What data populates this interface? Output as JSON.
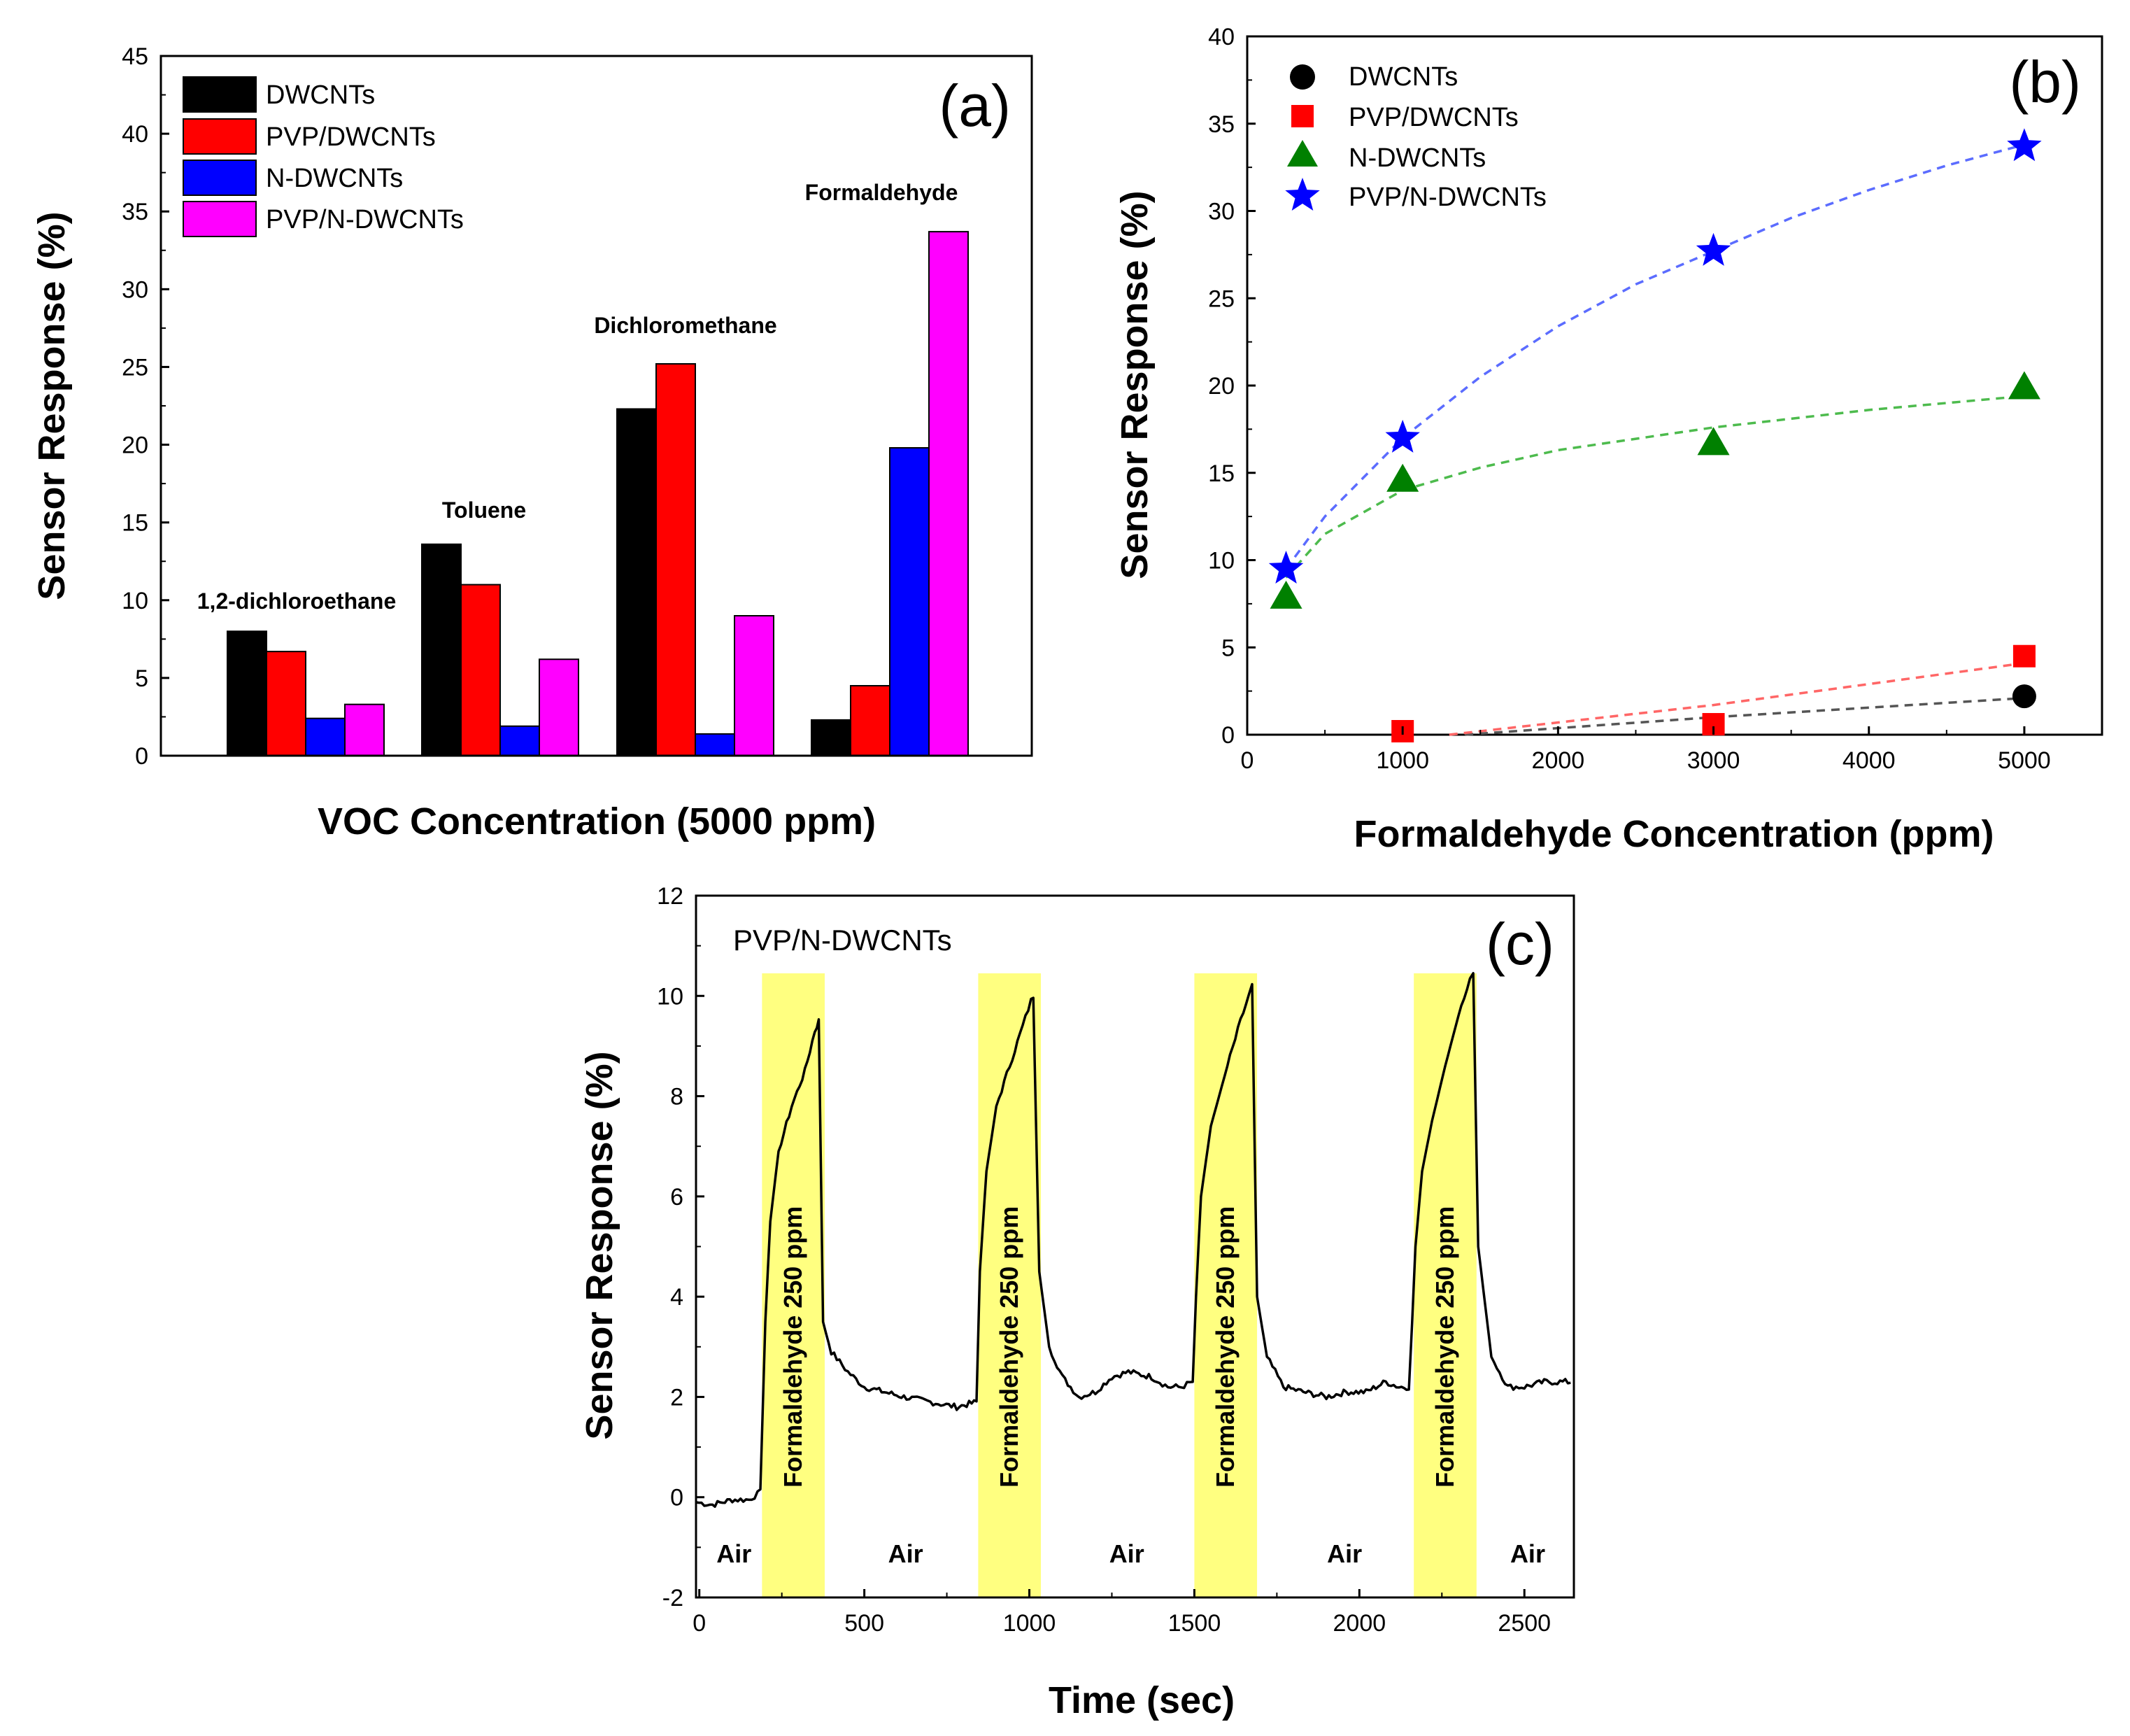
{
  "chart_data": [
    {
      "type": "bar",
      "panel": "(a)",
      "xlabel": "VOC Concentration (5000 ppm)",
      "ylabel": "Sensor Response (%)",
      "ylim": [
        0,
        45
      ],
      "yticks": [
        0,
        5,
        10,
        15,
        20,
        25,
        30,
        35,
        40,
        45
      ],
      "categories": [
        "1,2-dichloroethane",
        "Toluene",
        "Dichloromethane",
        "Formaldehyde"
      ],
      "series": [
        {
          "name": "DWCNTs",
          "color": "#000000",
          "values": [
            8.0,
            13.6,
            22.3,
            2.3
          ]
        },
        {
          "name": "PVP/DWCNTs",
          "color": "#ff0000",
          "values": [
            6.7,
            11.0,
            25.2,
            4.5
          ]
        },
        {
          "name": "N-DWCNTs",
          "color": "#0000ff",
          "values": [
            2.4,
            1.9,
            1.4,
            19.8
          ]
        },
        {
          "name": "PVP/N-DWCNTs",
          "color": "#ff00ff",
          "values": [
            3.3,
            6.2,
            9.0,
            33.7
          ]
        }
      ],
      "legend": "top-left"
    },
    {
      "type": "scatter",
      "panel": "(b)",
      "xlabel": "Formaldehyde Concentration (ppm)",
      "ylabel": "Sensor Response (%)",
      "xlim": [
        0,
        5500
      ],
      "ylim": [
        0,
        40
      ],
      "xticks": [
        0,
        1000,
        2000,
        3000,
        4000,
        5000
      ],
      "yticks": [
        0,
        5,
        10,
        15,
        20,
        25,
        30,
        35,
        40
      ],
      "series": [
        {
          "name": "DWCNTs",
          "color": "#000000",
          "marker": "circle",
          "x": [
            5000
          ],
          "y": [
            2.2
          ],
          "fit": [
            [
              1400,
              0.0
            ],
            [
              3000,
              1.0
            ],
            [
              5000,
              2.1
            ]
          ]
        },
        {
          "name": "PVP/DWCNTs",
          "color": "#ff0000",
          "marker": "square",
          "x": [
            1000,
            3000,
            5000
          ],
          "y": [
            0.2,
            0.6,
            4.5
          ],
          "fit": [
            [
              1300,
              0.0
            ],
            [
              3000,
              1.7
            ],
            [
              5000,
              4.1
            ]
          ]
        },
        {
          "name": "N-DWCNTs",
          "color": "#008000",
          "marker": "triangle",
          "x": [
            250,
            1000,
            3000,
            5000
          ],
          "y": [
            7.9,
            14.6,
            16.7,
            19.9
          ],
          "fit": [
            [
              250,
              9.0
            ],
            [
              500,
              11.5
            ],
            [
              1000,
              14.0
            ],
            [
              1500,
              15.3
            ],
            [
              2000,
              16.3
            ],
            [
              3000,
              17.6
            ],
            [
              4000,
              18.6
            ],
            [
              5000,
              19.4
            ]
          ]
        },
        {
          "name": "PVP/N-DWCNTs",
          "color": "#0000ff",
          "marker": "star",
          "x": [
            250,
            1000,
            3000,
            5000
          ],
          "y": [
            9.5,
            17.0,
            27.7,
            33.7
          ],
          "fit": [
            [
              250,
              9.5
            ],
            [
              500,
              12.5
            ],
            [
              1000,
              17.0
            ],
            [
              1500,
              20.5
            ],
            [
              2000,
              23.4
            ],
            [
              2500,
              25.8
            ],
            [
              3000,
              27.7
            ],
            [
              3500,
              29.6
            ],
            [
              4000,
              31.2
            ],
            [
              4500,
              32.6
            ],
            [
              5000,
              33.8
            ]
          ]
        }
      ],
      "legend": "top-left"
    },
    {
      "type": "line",
      "panel": "(c)",
      "annotation": "PVP/N-DWCNTs",
      "xlabel": "Time (sec)",
      "ylabel": "Sensor Response (%)",
      "xlim": [
        -10,
        2650
      ],
      "ylim": [
        -2,
        12
      ],
      "xticks": [
        0,
        500,
        1000,
        1500,
        2000,
        2500
      ],
      "yticks": [
        -2,
        0,
        2,
        4,
        6,
        8,
        10,
        12
      ],
      "exposure_windows": [
        [
          190,
          380
        ],
        [
          845,
          1035
        ],
        [
          1500,
          1690
        ],
        [
          2165,
          2355
        ]
      ],
      "exposure_label": "Formaldehyde 250 ppm",
      "air_label": "Air",
      "air_label_x": [
        105,
        625,
        1295,
        1955,
        2510
      ],
      "exposure_color": "#ffff80",
      "series": [
        {
          "name": "PVP/N-DWCNTs",
          "color": "#000000",
          "x": [
            -10,
            40,
            100,
            150,
            185,
            200,
            215,
            240,
            280,
            320,
            350,
            362,
            375,
            400,
            450,
            500,
            560,
            620,
            700,
            780,
            840,
            850,
            870,
            900,
            940,
            980,
            1005,
            1012,
            1030,
            1060,
            1100,
            1150,
            1200,
            1250,
            1300,
            1370,
            1420,
            1460,
            1495,
            1505,
            1520,
            1550,
            1600,
            1640,
            1665,
            1675,
            1690,
            1720,
            1770,
            1830,
            1900,
            1960,
            2020,
            2080,
            2120,
            2150,
            2160,
            2170,
            2190,
            2220,
            2260,
            2300,
            2335,
            2345,
            2360,
            2400,
            2450,
            2500,
            2560,
            2640
          ],
          "y": [
            -0.1,
            -0.15,
            -0.05,
            -0.05,
            0.1,
            3.5,
            5.5,
            6.9,
            7.8,
            8.5,
            9.3,
            9.5,
            3.5,
            2.9,
            2.5,
            2.2,
            2.1,
            2.0,
            1.9,
            1.8,
            1.9,
            4.5,
            6.5,
            7.8,
            8.6,
            9.4,
            9.9,
            10.0,
            4.5,
            3.0,
            2.4,
            2.0,
            2.1,
            2.4,
            2.5,
            2.4,
            2.2,
            2.2,
            2.3,
            4.0,
            6.0,
            7.4,
            8.6,
            9.5,
            10.0,
            10.2,
            4.0,
            2.8,
            2.2,
            2.1,
            2.0,
            2.1,
            2.1,
            2.3,
            2.2,
            2.2,
            3.5,
            5.0,
            6.5,
            7.5,
            8.6,
            9.6,
            10.3,
            10.5,
            5.0,
            2.8,
            2.2,
            2.2,
            2.3,
            2.3
          ]
        }
      ]
    }
  ]
}
